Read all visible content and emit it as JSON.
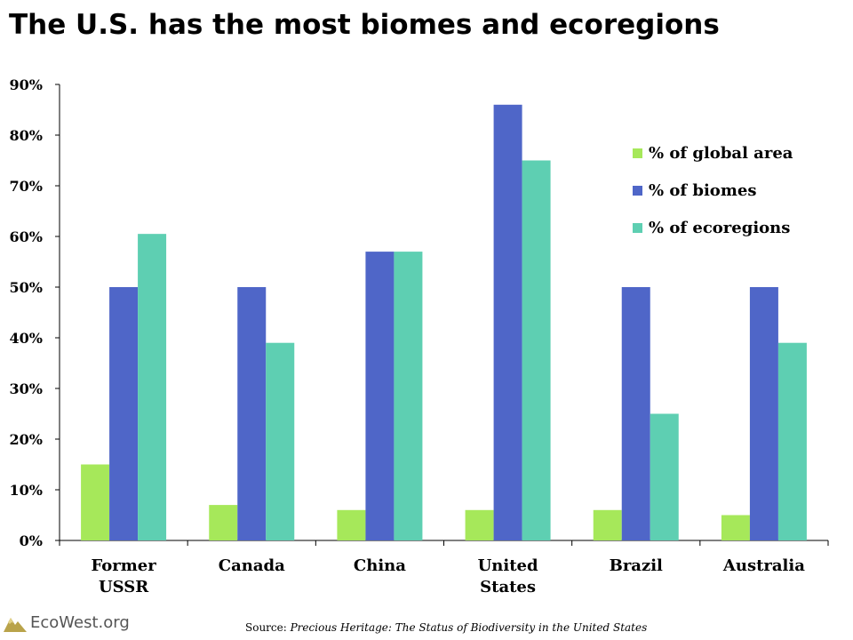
{
  "header": {
    "title": "The U.S. has the most biomes and ecoregions"
  },
  "chart_data": {
    "type": "bar",
    "title": "The U.S. has the most biomes and ecoregions",
    "categories": [
      "Former USSR",
      "Canada",
      "China",
      "United States",
      "Brazil",
      "Australia"
    ],
    "category_lines": [
      [
        "Former",
        "USSR"
      ],
      [
        "Canada"
      ],
      [
        "China"
      ],
      [
        "United",
        "States"
      ],
      [
        "Brazil"
      ],
      [
        "Australia"
      ]
    ],
    "series": [
      {
        "name": "% of global area",
        "color": "#a6e85a",
        "values": [
          15,
          7,
          6,
          6,
          6,
          5
        ]
      },
      {
        "name": "% of biomes",
        "color": "#4f66c8",
        "values": [
          50,
          50,
          57,
          86,
          50,
          50
        ]
      },
      {
        "name": "% of ecoregions",
        "color": "#5ecfb2",
        "values": [
          60.5,
          39,
          57,
          75,
          25,
          39
        ]
      }
    ],
    "ylim": [
      0,
      90
    ],
    "yticks": [
      "0%",
      "10%",
      "20%",
      "30%",
      "40%",
      "50%",
      "60%",
      "70%",
      "80%",
      "90%"
    ],
    "xlabel": "",
    "ylabel": "",
    "grid": false,
    "legend_position": "right"
  },
  "footer": {
    "logo_text": "EcoWest.org",
    "source_prefix": "Source: ",
    "source_title": "Precious Heritage: The Status of Biodiversity in the United States"
  }
}
